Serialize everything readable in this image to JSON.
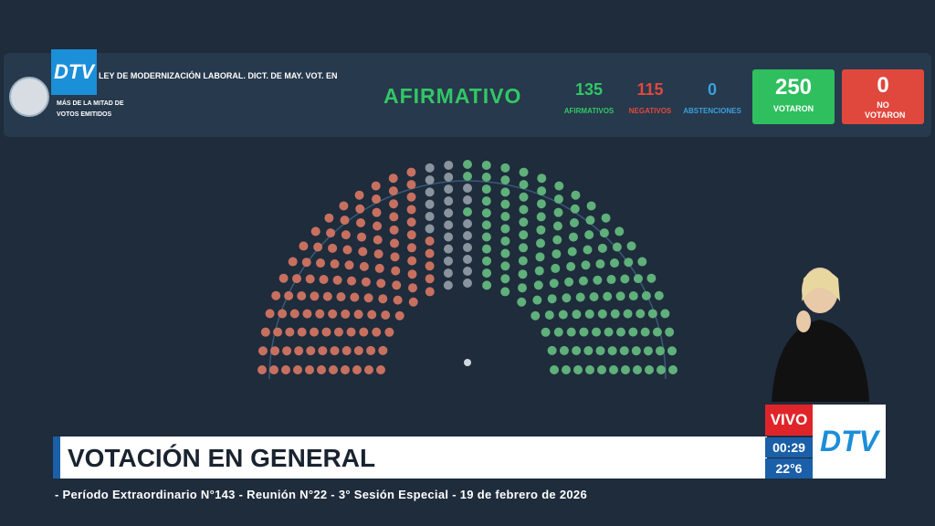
{
  "logo": "DTV",
  "header": {
    "bill": "LEY DE MODERNIZACIÓN LABORAL. DICT. DE MAY. VOT. EN",
    "majority": "MÁS DE LA MITAD DE VOTOS EMITIDOS",
    "result": "AFIRMATIVO"
  },
  "tally": {
    "afirmativos": {
      "value": 135,
      "label": "AFIRMATIVOS"
    },
    "negativos": {
      "value": 115,
      "label": "NEGATIVOS"
    },
    "abstenciones": {
      "value": 0,
      "label": "ABSTENCIONES"
    },
    "votaron": {
      "value": 250,
      "label": "VOTARON"
    },
    "no_votaron": {
      "value": 0,
      "label": "NO VOTARON"
    }
  },
  "lower_third": {
    "title": "VOTACIÓN EN GENERAL",
    "subtitle": "- Período Extraordinario N°143 - Reunión N°22 - 3° Sesión Especial - 19 de febrero de 2026",
    "live": "VIVO",
    "time": "00:29",
    "temperature": "22°6",
    "logo": "DTV"
  }
}
